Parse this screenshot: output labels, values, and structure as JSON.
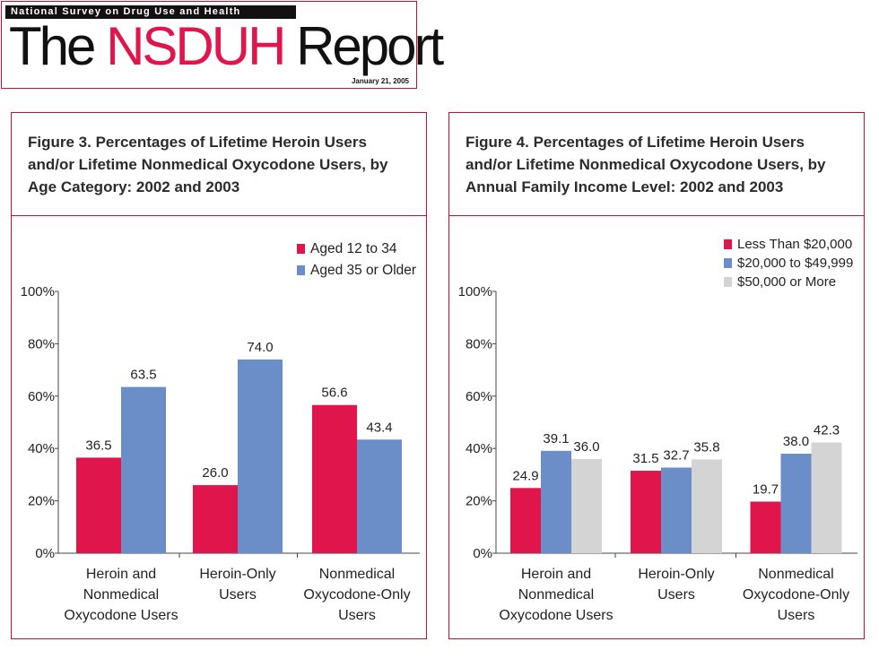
{
  "masthead": {
    "survey": "National Survey on Drug Use and Health",
    "title_the": "The ",
    "title_nsduh": "NSDUH",
    "title_report": " Report",
    "date": "January 21, 2005"
  },
  "colors": {
    "red": "#e0154b",
    "blue": "#6b8ec8",
    "gray": "#d4d4d4",
    "border": "#c8102e"
  },
  "chart_data": [
    {
      "type": "bar",
      "title": "Figure 3. Percentages of Lifetime Heroin Users and/or Lifetime Nonmedical Oxycodone Users, by Age Category: 2002 and 2003",
      "categories": [
        [
          "Heroin and",
          "Nonmedical",
          "Oxycodone Users"
        ],
        [
          "Heroin-Only",
          "Users"
        ],
        [
          "Nonmedical",
          "Oxycodone-Only",
          "Users"
        ]
      ],
      "series": [
        {
          "name": "Aged 12 to 34",
          "color": "#e0154b",
          "values": [
            36.5,
            26.0,
            56.6
          ],
          "labels": [
            "36.5",
            "26.0",
            "56.6"
          ]
        },
        {
          "name": "Aged 35 or Older",
          "color": "#6b8ec8",
          "values": [
            63.5,
            74.0,
            43.4
          ],
          "labels": [
            "63.5",
            "74.0",
            "43.4"
          ]
        }
      ],
      "yticks": [
        "0%",
        "20%",
        "40%",
        "60%",
        "80%",
        "100%"
      ],
      "ylim": [
        0,
        100
      ],
      "legend": "top-right",
      "grid": false
    },
    {
      "type": "bar",
      "title": "Figure 4.  Percentages of Lifetime Heroin Users and/or Lifetime Nonmedical Oxycodone Users, by Annual Family Income Level: 2002 and 2003",
      "categories": [
        [
          "Heroin and",
          "Nonmedical",
          "Oxycodone Users"
        ],
        [
          "Heroin-Only",
          "Users"
        ],
        [
          "Nonmedical",
          "Oxycodone-Only",
          "Users"
        ]
      ],
      "series": [
        {
          "name": "Less Than $20,000",
          "color": "#e0154b",
          "values": [
            24.9,
            31.5,
            19.7
          ],
          "labels": [
            "24.9",
            "31.5",
            "19.7"
          ]
        },
        {
          "name": "$20,000 to $49,999",
          "color": "#6b8ec8",
          "values": [
            39.1,
            32.7,
            38.0
          ],
          "labels": [
            "39.1",
            "32.7",
            "38.0"
          ]
        },
        {
          "name": "$50,000 or More",
          "color": "#d4d4d4",
          "values": [
            36.0,
            35.8,
            42.3
          ],
          "labels": [
            "36.0",
            "35.8",
            "42.3"
          ]
        }
      ],
      "yticks": [
        "0%",
        "20%",
        "40%",
        "60%",
        "80%",
        "100%"
      ],
      "ylim": [
        0,
        100
      ],
      "legend": "top-right",
      "grid": false
    }
  ]
}
